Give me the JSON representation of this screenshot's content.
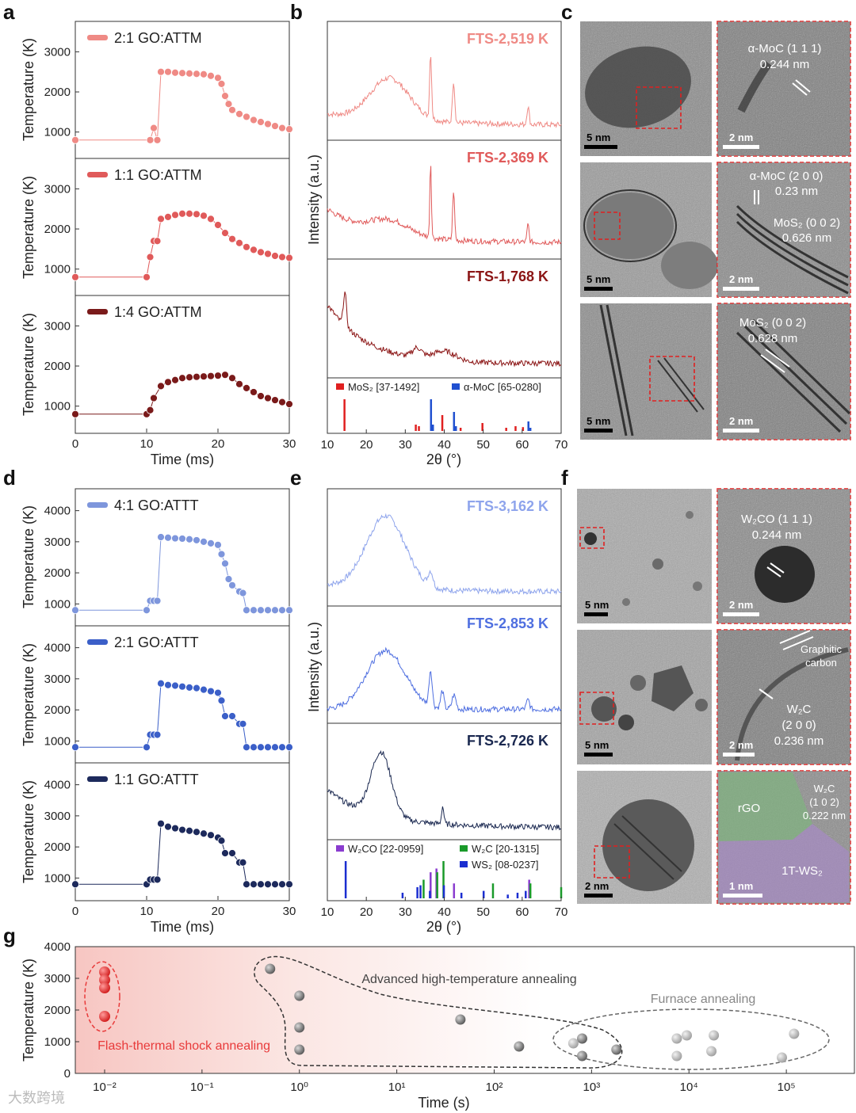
{
  "panels": {
    "a": {
      "letter": "a",
      "ylabel": "Temperature (K)",
      "xlabel": "Time (ms)"
    },
    "b": {
      "letter": "b",
      "ylabel": "Intensity (a.u.)",
      "xlabel": "2θ (°)"
    },
    "c": {
      "letter": "c"
    },
    "d": {
      "letter": "d",
      "ylabel": "Temperature (K)",
      "xlabel": "Time (ms)"
    },
    "e": {
      "letter": "e",
      "ylabel": "Intensity (a.u.)",
      "xlabel": "2θ (°)"
    },
    "f": {
      "letter": "f"
    },
    "g": {
      "letter": "g",
      "ylabel": "Temperature (K)",
      "xlabel": "Time (s)"
    }
  },
  "tem_c": {
    "scale_left": [
      "5 nm",
      "5 nm",
      "5 nm"
    ],
    "scale_right": [
      "2 nm",
      "2 nm",
      "2 nm"
    ],
    "annotations": [
      [
        "α-MoC (1 1 1)",
        "0.244 nm"
      ],
      [
        "α-MoC (2 0 0)",
        "0.23 nm",
        "MoS₂ (0 0 2)",
        "0.626 nm"
      ],
      [
        "MoS₂ (0 0 2)",
        "0.628 nm"
      ]
    ]
  },
  "tem_f": {
    "scale_left": [
      "5 nm",
      "5 nm",
      "2 nm"
    ],
    "scale_right": [
      "2 nm",
      "2 nm",
      "1 nm"
    ],
    "annotations": [
      [
        "W₂CO (1 1 1)",
        "0.244 nm"
      ],
      [
        "Graphitic",
        "carbon",
        "W₂C",
        "(2 0 0)",
        "0.236 nm"
      ],
      [
        "rGO",
        "W₂C",
        "(1 0 2)",
        "0.222 nm",
        "1T-WS₂"
      ]
    ]
  },
  "chart_data": [
    {
      "id": "a",
      "type": "scatter",
      "xlabel": "Time (ms)",
      "ylabel": "Temperature (K)",
      "xlim": [
        0,
        30
      ],
      "ylim": [
        500,
        3600
      ],
      "xticks": [
        "0",
        "10",
        "20",
        "30"
      ],
      "yticks": [
        "1000",
        "2000",
        "3000"
      ],
      "series": [
        {
          "name": "2:1 GO:ATTM",
          "color": "#ef8a85",
          "x": [
            0,
            10.5,
            11,
            11.5,
            12,
            13,
            14,
            15,
            16,
            17,
            18,
            19,
            20,
            20.5,
            21,
            21.5,
            22,
            23,
            24,
            25,
            26,
            27,
            28,
            29,
            30
          ],
          "y": [
            800,
            800,
            1100,
            800,
            2500,
            2500,
            2480,
            2470,
            2460,
            2450,
            2440,
            2400,
            2350,
            2200,
            1900,
            1700,
            1550,
            1450,
            1380,
            1300,
            1250,
            1200,
            1150,
            1100,
            1070
          ]
        },
        {
          "name": "1:1 GO:ATTM",
          "color": "#e05a5a",
          "x": [
            0,
            10,
            10.5,
            11,
            11.5,
            12,
            13,
            14,
            15,
            16,
            17,
            18,
            19,
            20,
            21,
            22,
            23,
            24,
            25,
            26,
            27,
            28,
            29,
            30
          ],
          "y": [
            800,
            800,
            1300,
            1700,
            1700,
            2250,
            2300,
            2350,
            2380,
            2380,
            2370,
            2330,
            2250,
            2100,
            1900,
            1750,
            1650,
            1550,
            1480,
            1420,
            1380,
            1330,
            1300,
            1280
          ]
        },
        {
          "name": "1:4 GO:ATTM",
          "color": "#7a1a1a",
          "x": [
            0,
            10,
            10.5,
            11,
            12,
            13,
            14,
            15,
            16,
            17,
            18,
            19,
            20,
            21,
            22,
            23,
            24,
            25,
            26,
            27,
            28,
            29,
            30
          ],
          "y": [
            800,
            800,
            900,
            1200,
            1500,
            1600,
            1650,
            1700,
            1720,
            1730,
            1740,
            1750,
            1760,
            1780,
            1700,
            1550,
            1450,
            1350,
            1250,
            1200,
            1150,
            1100,
            1050
          ]
        }
      ]
    },
    {
      "id": "b",
      "type": "line",
      "xlabel": "2θ (°)",
      "ylabel": "Intensity (a.u.)",
      "xlim": [
        10,
        70
      ],
      "xticks": [
        "10",
        "20",
        "30",
        "40",
        "50",
        "60",
        "70"
      ],
      "series": [
        {
          "name": "FTS-2,519 K",
          "color": "#ef8a85"
        },
        {
          "name": "FTS-2,369 K",
          "color": "#e05a5a"
        },
        {
          "name": "FTS-1,768 K",
          "color": "#8b1515"
        }
      ],
      "references": [
        {
          "name": "MoS₂ [37-1492]",
          "color": "#e02020",
          "x": [
            14.4,
            32.7,
            33.5,
            39.5,
            44.2,
            49.8,
            55.9,
            58.3,
            60.2
          ],
          "y": [
            1.0,
            0.2,
            0.15,
            0.5,
            0.1,
            0.25,
            0.1,
            0.15,
            0.12
          ]
        },
        {
          "name": "α-MoC [65-0280]",
          "color": "#2050d0",
          "x": [
            36.4,
            42.3,
            61.4,
            36.9,
            42.8,
            61.9
          ],
          "y": [
            1.0,
            0.6,
            0.3,
            0.2,
            0.15,
            0.1
          ]
        }
      ]
    },
    {
      "id": "d",
      "type": "scatter",
      "xlabel": "Time (ms)",
      "ylabel": "Temperature (K)",
      "xlim": [
        0,
        30
      ],
      "ylim": [
        500,
        4500
      ],
      "xticks": [
        "0",
        "10",
        "20",
        "30"
      ],
      "yticks": [
        "1000",
        "2000",
        "3000",
        "4000"
      ],
      "series": [
        {
          "name": "4:1 GO:ATTT",
          "color": "#7e96dc",
          "x": [
            0,
            10,
            10.5,
            11,
            11.5,
            12,
            13,
            14,
            15,
            16,
            17,
            18,
            19,
            20,
            20.5,
            21,
            21.5,
            22,
            23,
            23.5,
            24,
            25,
            26,
            27,
            28,
            29,
            30
          ],
          "y": [
            800,
            800,
            1100,
            1100,
            1100,
            3150,
            3130,
            3110,
            3100,
            3080,
            3050,
            3000,
            2950,
            2900,
            2600,
            2300,
            1800,
            1600,
            1400,
            1350,
            800,
            800,
            800,
            800,
            800,
            800,
            800
          ]
        },
        {
          "name": "2:1 GO:ATTT",
          "color": "#3b5fc8",
          "x": [
            0,
            10,
            10.5,
            11,
            11.5,
            12,
            13,
            14,
            15,
            16,
            17,
            18,
            19,
            20,
            20.5,
            21,
            22,
            23,
            23.5,
            24,
            25,
            26,
            27,
            28,
            29,
            30
          ],
          "y": [
            800,
            800,
            1200,
            1200,
            1200,
            2850,
            2800,
            2780,
            2750,
            2720,
            2700,
            2650,
            2600,
            2550,
            2300,
            1800,
            1800,
            1550,
            1550,
            800,
            800,
            800,
            800,
            800,
            800,
            800
          ]
        },
        {
          "name": "1:1 GO:ATTT",
          "color": "#1d2a5c",
          "x": [
            0,
            10,
            10.5,
            11,
            11.5,
            12,
            13,
            14,
            15,
            16,
            17,
            18,
            19,
            20,
            20.5,
            21,
            22,
            23,
            23.5,
            24,
            25,
            26,
            27,
            28,
            29,
            30
          ],
          "y": [
            800,
            800,
            950,
            950,
            950,
            2750,
            2650,
            2600,
            2550,
            2520,
            2480,
            2430,
            2380,
            2300,
            2200,
            1800,
            1800,
            1500,
            1500,
            800,
            800,
            800,
            800,
            800,
            800,
            800
          ]
        }
      ]
    },
    {
      "id": "e",
      "type": "line",
      "xlabel": "2θ (°)",
      "ylabel": "Intensity (a.u.)",
      "xlim": [
        10,
        70
      ],
      "xticks": [
        "10",
        "20",
        "30",
        "40",
        "50",
        "60",
        "70"
      ],
      "series": [
        {
          "name": "FTS-3,162 K",
          "color": "#8ea4ec"
        },
        {
          "name": "FTS-2,853 K",
          "color": "#4f6fe0"
        },
        {
          "name": "FTS-2,726 K",
          "color": "#1a2850"
        }
      ],
      "references": [
        {
          "name": "W₂CO [22-0959]",
          "color": "#8a3ccf",
          "x": [
            36.5,
            38.0,
            42.5,
            61.8
          ],
          "y": [
            0.7,
            0.8,
            0.4,
            0.5
          ]
        },
        {
          "name": "W₂C [20-1315]",
          "color": "#1a9a2a",
          "x": [
            34.5,
            38.0,
            39.6,
            52.3,
            61.9,
            69.8
          ],
          "y": [
            0.5,
            0.7,
            1.0,
            0.4,
            0.4,
            0.3
          ]
        },
        {
          "name": "WS₂ [08-0237]",
          "color": "#1b2ed0",
          "x": [
            14.3,
            28.9,
            32.7,
            33.5,
            35.9,
            39.5,
            44.0,
            49.7,
            55.9,
            58.4,
            60.5
          ],
          "y": [
            1.0,
            0.15,
            0.3,
            0.35,
            0.2,
            0.35,
            0.15,
            0.2,
            0.1,
            0.15,
            0.2
          ]
        }
      ]
    },
    {
      "id": "g",
      "type": "scatter",
      "xlabel": "Time (s)",
      "ylabel": "Temperature (K)",
      "xscale": "log",
      "xlim": [
        0.005,
        500000
      ],
      "ylim": [
        0,
        4000
      ],
      "xticks": [
        "10⁻²",
        "10⁻¹",
        "10⁰",
        "10¹",
        "10²",
        "10³",
        "10⁴",
        "10⁵"
      ],
      "yticks": [
        "0",
        "1000",
        "2000",
        "3000",
        "4000"
      ],
      "groups": [
        {
          "name": "Flash-thermal shock annealing",
          "color": "#e83a3a",
          "x": [
            0.01,
            0.01,
            0.01,
            0.01
          ],
          "y": [
            3200,
            2950,
            2700,
            1800
          ]
        },
        {
          "name": "Advanced high-temperature annealing",
          "color": "#6a6a6a",
          "x": [
            0.5,
            1,
            1,
            1,
            45,
            180,
            800,
            800,
            1800
          ],
          "y": [
            3300,
            2450,
            1450,
            750,
            1700,
            850,
            1100,
            550,
            750
          ]
        },
        {
          "name": "Furnace annealing",
          "color": "#c0c0c0",
          "x": [
            650,
            7500,
            9500,
            7500,
            18000,
            17000,
            90000,
            120000
          ],
          "y": [
            950,
            1100,
            1200,
            550,
            1200,
            700,
            500,
            1250
          ]
        }
      ]
    }
  ],
  "watermark": "大数跨境"
}
